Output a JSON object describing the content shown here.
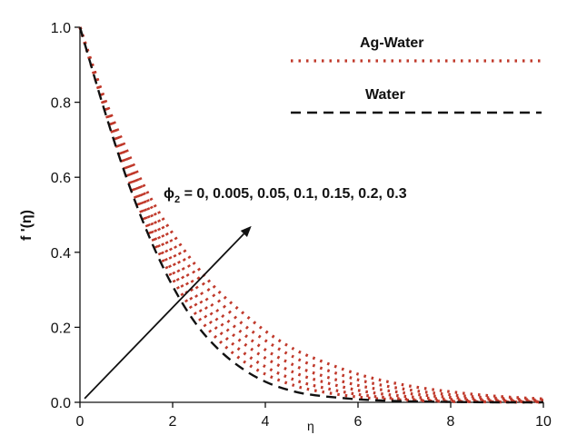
{
  "chart_data": {
    "type": "line",
    "title": "",
    "xlabel": "η",
    "ylabel": "f '(η)",
    "xlim": [
      0,
      10
    ],
    "ylim": [
      0,
      1
    ],
    "x_ticks": [
      "0",
      "2",
      "4",
      "6",
      "8",
      "10"
    ],
    "y_ticks": [
      "0.0",
      "0.2",
      "0.4",
      "0.6",
      "0.8",
      "1.0"
    ],
    "x_tick_values": [
      0,
      2,
      4,
      6,
      8,
      10
    ],
    "y_tick_values": [
      0,
      0.2,
      0.4,
      0.6,
      0.8,
      1.0
    ],
    "legend_position": "top-right",
    "grid": false,
    "x": [
      0,
      0.5,
      1,
      1.5,
      2,
      2.5,
      3,
      3.5,
      4,
      4.5,
      5,
      6,
      7,
      8,
      9,
      10
    ],
    "series": [
      {
        "name": "Water",
        "style": "dashed",
        "color": "#111111",
        "values": [
          1.0,
          0.79,
          0.6,
          0.44,
          0.31,
          0.21,
          0.14,
          0.09,
          0.055,
          0.033,
          0.02,
          0.008,
          0.003,
          0.001,
          0.0,
          0.0
        ]
      },
      {
        "style": "dotted",
        "color": "#c0392b",
        "values": [
          1.0,
          0.795,
          0.61,
          0.455,
          0.33,
          0.235,
          0.165,
          0.112,
          0.075,
          0.05,
          0.033,
          0.014,
          0.006,
          0.002,
          0.001,
          0.0
        ]
      },
      {
        "style": "dotted",
        "color": "#c0392b",
        "values": [
          1.0,
          0.8,
          0.62,
          0.47,
          0.35,
          0.26,
          0.19,
          0.135,
          0.095,
          0.066,
          0.046,
          0.021,
          0.009,
          0.004,
          0.002,
          0.001
        ]
      },
      {
        "style": "dotted",
        "color": "#c0392b",
        "values": [
          1.0,
          0.805,
          0.635,
          0.49,
          0.375,
          0.285,
          0.215,
          0.16,
          0.118,
          0.086,
          0.063,
          0.032,
          0.016,
          0.008,
          0.004,
          0.002
        ]
      },
      {
        "style": "dotted",
        "color": "#c0392b",
        "values": [
          1.0,
          0.81,
          0.65,
          0.51,
          0.4,
          0.31,
          0.24,
          0.185,
          0.14,
          0.106,
          0.08,
          0.045,
          0.025,
          0.013,
          0.007,
          0.004
        ]
      },
      {
        "style": "dotted",
        "color": "#c0392b",
        "values": [
          1.0,
          0.815,
          0.66,
          0.53,
          0.425,
          0.34,
          0.27,
          0.21,
          0.165,
          0.128,
          0.1,
          0.06,
          0.035,
          0.02,
          0.011,
          0.006
        ]
      },
      {
        "style": "dotted",
        "color": "#c0392b",
        "values": [
          1.0,
          0.82,
          0.675,
          0.55,
          0.45,
          0.365,
          0.295,
          0.24,
          0.19,
          0.15,
          0.12,
          0.075,
          0.046,
          0.028,
          0.016,
          0.009
        ]
      }
    ],
    "legend": [
      {
        "label": "Ag-Water",
        "style": "dotted",
        "color": "#c0392b"
      },
      {
        "label": "Water",
        "style": "dashed",
        "color": "#111111"
      }
    ],
    "annotation": {
      "symbol": "ϕ",
      "subscript": "2",
      "text": " = 0, 0.005, 0.05, 0.1, 0.15, 0.2, 0.3",
      "arrow_from": [
        0.1,
        0.01
      ],
      "arrow_to": [
        3.7,
        0.47
      ]
    }
  }
}
